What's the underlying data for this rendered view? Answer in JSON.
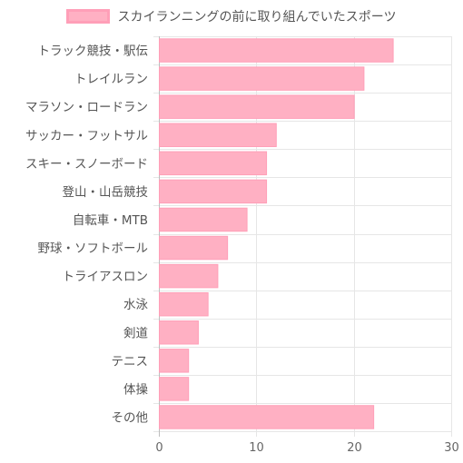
{
  "chart_data": {
    "type": "bar",
    "orientation": "horizontal",
    "categories": [
      "トラック競技・駅伝",
      "トレイルラン",
      "マラソン・ロードラン",
      "サッカー・フットサル",
      "スキー・スノーボード",
      "登山・山岳競技",
      "自転車・MTB",
      "野球・ソフトボール",
      "トライアスロン",
      "水泳",
      "剣道",
      "テニス",
      "体操",
      "その他"
    ],
    "series": [
      {
        "name": "スカイランニングの前に取り組んでいたスポーツ",
        "values": [
          24,
          21,
          20,
          12,
          11,
          11,
          9,
          7,
          6,
          5,
          4,
          3,
          3,
          22
        ],
        "color": "#ffb0c3",
        "border_color": "#ff9fb8"
      }
    ],
    "xlim": [
      0,
      30
    ],
    "x_ticks": [
      "0",
      "10",
      "20",
      "30"
    ],
    "grid": true,
    "legend_position": "top"
  }
}
